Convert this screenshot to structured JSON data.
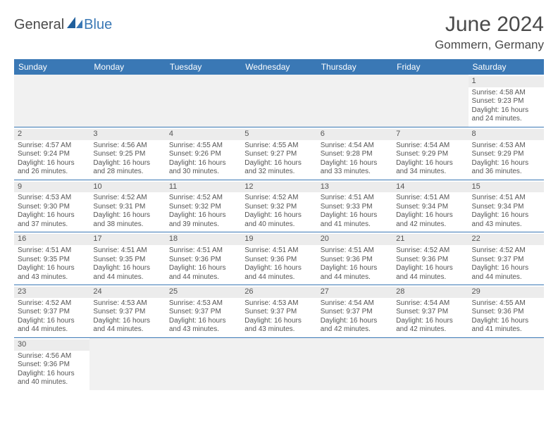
{
  "brand": {
    "part1": "General",
    "part2": "Blue"
  },
  "title": {
    "month": "June 2024",
    "location": "Gommern, Germany"
  },
  "colors": {
    "header_bg": "#3a78b5",
    "header_text": "#ffffff",
    "row_divider": "#3a78b5",
    "daynum_bg": "#ececec",
    "empty_bg": "#f1f1f1",
    "body_text": "#555555",
    "title_text": "#4a4a4a",
    "brand_blue": "#3a78b5"
  },
  "typography": {
    "month_fontsize": 30,
    "location_fontsize": 17,
    "header_fontsize": 12,
    "cell_fontsize": 10,
    "daynum_fontsize": 11
  },
  "calendar": {
    "type": "table",
    "columns": [
      "Sunday",
      "Monday",
      "Tuesday",
      "Wednesday",
      "Thursday",
      "Friday",
      "Saturday"
    ],
    "weeks": [
      [
        null,
        null,
        null,
        null,
        null,
        null,
        {
          "n": "1",
          "sr": "4:58 AM",
          "ss": "9:23 PM",
          "dl": "16 hours and 24 minutes."
        }
      ],
      [
        {
          "n": "2",
          "sr": "4:57 AM",
          "ss": "9:24 PM",
          "dl": "16 hours and 26 minutes."
        },
        {
          "n": "3",
          "sr": "4:56 AM",
          "ss": "9:25 PM",
          "dl": "16 hours and 28 minutes."
        },
        {
          "n": "4",
          "sr": "4:55 AM",
          "ss": "9:26 PM",
          "dl": "16 hours and 30 minutes."
        },
        {
          "n": "5",
          "sr": "4:55 AM",
          "ss": "9:27 PM",
          "dl": "16 hours and 32 minutes."
        },
        {
          "n": "6",
          "sr": "4:54 AM",
          "ss": "9:28 PM",
          "dl": "16 hours and 33 minutes."
        },
        {
          "n": "7",
          "sr": "4:54 AM",
          "ss": "9:29 PM",
          "dl": "16 hours and 34 minutes."
        },
        {
          "n": "8",
          "sr": "4:53 AM",
          "ss": "9:29 PM",
          "dl": "16 hours and 36 minutes."
        }
      ],
      [
        {
          "n": "9",
          "sr": "4:53 AM",
          "ss": "9:30 PM",
          "dl": "16 hours and 37 minutes."
        },
        {
          "n": "10",
          "sr": "4:52 AM",
          "ss": "9:31 PM",
          "dl": "16 hours and 38 minutes."
        },
        {
          "n": "11",
          "sr": "4:52 AM",
          "ss": "9:32 PM",
          "dl": "16 hours and 39 minutes."
        },
        {
          "n": "12",
          "sr": "4:52 AM",
          "ss": "9:32 PM",
          "dl": "16 hours and 40 minutes."
        },
        {
          "n": "13",
          "sr": "4:51 AM",
          "ss": "9:33 PM",
          "dl": "16 hours and 41 minutes."
        },
        {
          "n": "14",
          "sr": "4:51 AM",
          "ss": "9:34 PM",
          "dl": "16 hours and 42 minutes."
        },
        {
          "n": "15",
          "sr": "4:51 AM",
          "ss": "9:34 PM",
          "dl": "16 hours and 43 minutes."
        }
      ],
      [
        {
          "n": "16",
          "sr": "4:51 AM",
          "ss": "9:35 PM",
          "dl": "16 hours and 43 minutes."
        },
        {
          "n": "17",
          "sr": "4:51 AM",
          "ss": "9:35 PM",
          "dl": "16 hours and 44 minutes."
        },
        {
          "n": "18",
          "sr": "4:51 AM",
          "ss": "9:36 PM",
          "dl": "16 hours and 44 minutes."
        },
        {
          "n": "19",
          "sr": "4:51 AM",
          "ss": "9:36 PM",
          "dl": "16 hours and 44 minutes."
        },
        {
          "n": "20",
          "sr": "4:51 AM",
          "ss": "9:36 PM",
          "dl": "16 hours and 44 minutes."
        },
        {
          "n": "21",
          "sr": "4:52 AM",
          "ss": "9:36 PM",
          "dl": "16 hours and 44 minutes."
        },
        {
          "n": "22",
          "sr": "4:52 AM",
          "ss": "9:37 PM",
          "dl": "16 hours and 44 minutes."
        }
      ],
      [
        {
          "n": "23",
          "sr": "4:52 AM",
          "ss": "9:37 PM",
          "dl": "16 hours and 44 minutes."
        },
        {
          "n": "24",
          "sr": "4:53 AM",
          "ss": "9:37 PM",
          "dl": "16 hours and 44 minutes."
        },
        {
          "n": "25",
          "sr": "4:53 AM",
          "ss": "9:37 PM",
          "dl": "16 hours and 43 minutes."
        },
        {
          "n": "26",
          "sr": "4:53 AM",
          "ss": "9:37 PM",
          "dl": "16 hours and 43 minutes."
        },
        {
          "n": "27",
          "sr": "4:54 AM",
          "ss": "9:37 PM",
          "dl": "16 hours and 42 minutes."
        },
        {
          "n": "28",
          "sr": "4:54 AM",
          "ss": "9:37 PM",
          "dl": "16 hours and 42 minutes."
        },
        {
          "n": "29",
          "sr": "4:55 AM",
          "ss": "9:36 PM",
          "dl": "16 hours and 41 minutes."
        }
      ],
      [
        {
          "n": "30",
          "sr": "4:56 AM",
          "ss": "9:36 PM",
          "dl": "16 hours and 40 minutes."
        },
        null,
        null,
        null,
        null,
        null,
        null
      ]
    ],
    "labels": {
      "sunrise": "Sunrise:",
      "sunset": "Sunset:",
      "daylight": "Daylight:"
    }
  }
}
